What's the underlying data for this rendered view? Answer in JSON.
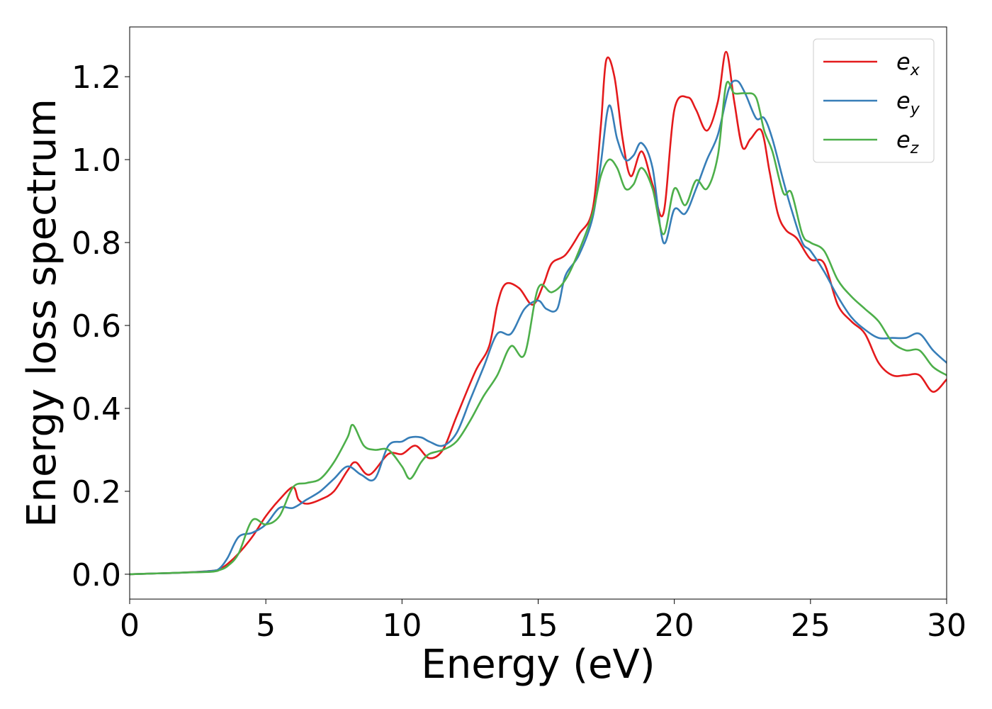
{
  "chart_data": {
    "type": "line",
    "title": "",
    "xlabel": "Energy (eV)",
    "ylabel": "Energy loss spectrum",
    "xlim": [
      0,
      30
    ],
    "ylim": [
      -0.06,
      1.32
    ],
    "xticks": [
      0,
      5,
      10,
      15,
      20,
      25,
      30
    ],
    "xtick_labels": [
      "0",
      "5",
      "10",
      "15",
      "20",
      "25",
      "30"
    ],
    "yticks": [
      0.0,
      0.2,
      0.4,
      0.6,
      0.8,
      1.0,
      1.2
    ],
    "ytick_labels": [
      "0.0",
      "0.2",
      "0.4",
      "0.6",
      "0.8",
      "1.0",
      "1.2"
    ],
    "grid": false,
    "legend_position": "top-right",
    "series": [
      {
        "name": "e_x",
        "legend_main": "e",
        "legend_sub": "x",
        "color": "#e41a1c",
        "x": [
          0,
          1,
          2,
          3,
          3.3,
          3.6,
          4,
          4.5,
          5,
          5.5,
          6,
          6.2,
          6.5,
          7,
          7.5,
          8,
          8.3,
          8.8,
          9.5,
          10,
          10.5,
          11,
          11.5,
          12,
          12.7,
          13.2,
          13.5,
          13.8,
          14.3,
          14.8,
          15.2,
          15.5,
          16,
          16.5,
          17,
          17.3,
          17.5,
          17.8,
          18.1,
          18.4,
          18.8,
          19.2,
          19.6,
          20,
          20.5,
          20.8,
          21.2,
          21.6,
          21.9,
          22.2,
          22.5,
          22.8,
          23.2,
          23.5,
          23.8,
          24.1,
          24.5,
          25,
          25.5,
          26,
          26.5,
          27,
          27.5,
          28,
          28.5,
          29,
          29.5,
          30
        ],
        "y": [
          0.0,
          0.002,
          0.004,
          0.008,
          0.012,
          0.025,
          0.05,
          0.09,
          0.14,
          0.18,
          0.21,
          0.18,
          0.17,
          0.18,
          0.2,
          0.25,
          0.27,
          0.24,
          0.29,
          0.29,
          0.31,
          0.28,
          0.3,
          0.38,
          0.49,
          0.55,
          0.65,
          0.7,
          0.69,
          0.65,
          0.7,
          0.75,
          0.77,
          0.82,
          0.88,
          1.08,
          1.24,
          1.2,
          1.05,
          0.96,
          1.02,
          0.94,
          0.87,
          1.12,
          1.15,
          1.12,
          1.07,
          1.14,
          1.26,
          1.14,
          1.03,
          1.05,
          1.07,
          0.97,
          0.87,
          0.83,
          0.81,
          0.76,
          0.75,
          0.65,
          0.61,
          0.58,
          0.51,
          0.48,
          0.48,
          0.48,
          0.44,
          0.47
        ]
      },
      {
        "name": "e_y",
        "legend_main": "e",
        "legend_sub": "y",
        "color": "#377eb8",
        "x": [
          0,
          1,
          2,
          3,
          3.3,
          3.6,
          4,
          4.5,
          5,
          5.5,
          6,
          6.5,
          7,
          7.5,
          8,
          8.5,
          9,
          9.5,
          10,
          10.3,
          10.7,
          11,
          11.5,
          12,
          12.5,
          13,
          13.5,
          14,
          14.5,
          15,
          15.3,
          15.7,
          16,
          16.5,
          17,
          17.3,
          17.6,
          17.9,
          18.2,
          18.5,
          18.8,
          19.2,
          19.6,
          20,
          20.4,
          20.8,
          21.2,
          21.6,
          22,
          22.3,
          22.6,
          23,
          23.3,
          23.6,
          24,
          24.3,
          24.7,
          25,
          25.5,
          26,
          26.5,
          27,
          27.5,
          28,
          28.5,
          29,
          29.5,
          30
        ],
        "y": [
          0.0,
          0.002,
          0.004,
          0.008,
          0.014,
          0.04,
          0.09,
          0.1,
          0.12,
          0.16,
          0.16,
          0.18,
          0.2,
          0.23,
          0.26,
          0.24,
          0.23,
          0.31,
          0.32,
          0.33,
          0.33,
          0.32,
          0.31,
          0.34,
          0.42,
          0.5,
          0.58,
          0.58,
          0.64,
          0.66,
          0.64,
          0.64,
          0.72,
          0.77,
          0.86,
          0.99,
          1.13,
          1.05,
          1.0,
          1.01,
          1.04,
          0.98,
          0.8,
          0.88,
          0.87,
          0.93,
          1.0,
          1.06,
          1.17,
          1.19,
          1.16,
          1.1,
          1.1,
          1.05,
          0.95,
          0.88,
          0.8,
          0.78,
          0.73,
          0.67,
          0.62,
          0.59,
          0.57,
          0.57,
          0.57,
          0.58,
          0.54,
          0.51
        ]
      },
      {
        "name": "e_z",
        "legend_main": "e",
        "legend_sub": "z",
        "color": "#4daf4a",
        "x": [
          0,
          1,
          2,
          3,
          3.3,
          3.6,
          4,
          4.5,
          5,
          5.5,
          6,
          6.5,
          7,
          7.5,
          8,
          8.2,
          8.6,
          9,
          9.5,
          10,
          10.3,
          10.7,
          11,
          11.5,
          12,
          12.5,
          13,
          13.5,
          14,
          14.5,
          15,
          15.5,
          16,
          16.5,
          17,
          17.3,
          17.6,
          17.9,
          18.2,
          18.5,
          18.8,
          19.2,
          19.6,
          20,
          20.4,
          20.8,
          21.2,
          21.6,
          21.9,
          22.2,
          22.6,
          23,
          23.3,
          23.6,
          24,
          24.3,
          24.7,
          25,
          25.5,
          26,
          26.5,
          27,
          27.5,
          28,
          28.5,
          29,
          29.5,
          30
        ],
        "y": [
          0.0,
          0.002,
          0.004,
          0.006,
          0.01,
          0.02,
          0.05,
          0.13,
          0.12,
          0.14,
          0.21,
          0.22,
          0.23,
          0.27,
          0.33,
          0.36,
          0.31,
          0.3,
          0.3,
          0.26,
          0.23,
          0.27,
          0.29,
          0.3,
          0.32,
          0.37,
          0.43,
          0.48,
          0.55,
          0.53,
          0.69,
          0.68,
          0.71,
          0.78,
          0.87,
          0.96,
          1.0,
          0.98,
          0.93,
          0.94,
          0.98,
          0.93,
          0.82,
          0.93,
          0.89,
          0.95,
          0.93,
          1.01,
          1.18,
          1.16,
          1.16,
          1.15,
          1.07,
          1.02,
          0.92,
          0.92,
          0.82,
          0.8,
          0.78,
          0.71,
          0.67,
          0.64,
          0.61,
          0.56,
          0.54,
          0.54,
          0.5,
          0.48
        ]
      }
    ]
  }
}
